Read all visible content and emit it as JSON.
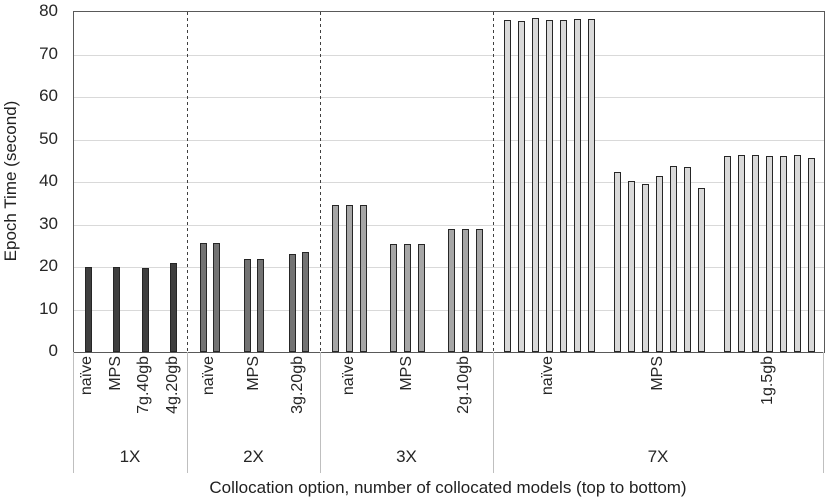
{
  "chart_data": {
    "type": "bar",
    "title": "",
    "ylabel": "Epoch Time (second)",
    "xlabel": "Collocation option, number of collocated models (top to bottom)",
    "ylim": [
      0,
      80
    ],
    "yticks": [
      0,
      10,
      20,
      30,
      40,
      50,
      60,
      70,
      80
    ],
    "grid": true,
    "legend": "none",
    "bar_outline_color": "#262626",
    "gridline_color": "#d9d9d9",
    "groups": [
      {
        "label": "1X",
        "fill": "#3f3f3f",
        "options": [
          {
            "label": "naïve",
            "values": [
              20.1
            ]
          },
          {
            "label": "MPS",
            "values": [
              20.0
            ]
          },
          {
            "label": "7g.40gb",
            "values": [
              19.7
            ]
          },
          {
            "label": "4g.20gb",
            "values": [
              20.9
            ]
          }
        ]
      },
      {
        "label": "2X",
        "fill": "#737373",
        "options": [
          {
            "label": "naïve",
            "values": [
              25.7,
              25.6
            ]
          },
          {
            "label": "MPS",
            "values": [
              21.9,
              21.9
            ]
          },
          {
            "label": "3g.20gb",
            "values": [
              23.1,
              23.6
            ]
          }
        ]
      },
      {
        "label": "3X",
        "fill": "#a6a6a6",
        "options": [
          {
            "label": "naïve",
            "values": [
              34.6,
              34.6,
              34.5
            ]
          },
          {
            "label": "MPS",
            "values": [
              25.4,
              25.4,
              25.3
            ]
          },
          {
            "label": "2g.10gb",
            "values": [
              29.0,
              29.0,
              29.0
            ]
          }
        ]
      },
      {
        "label": "7X",
        "fill": "#d9d9d9",
        "options": [
          {
            "label": "naïve",
            "values": [
              78.2,
              77.8,
              78.5,
              78.2,
              78.2,
              78.4,
              78.4
            ]
          },
          {
            "label": "MPS",
            "values": [
              42.4,
              40.2,
              39.5,
              41.5,
              43.8,
              43.5,
              38.7
            ]
          },
          {
            "label": "1g.5gb",
            "values": [
              46.2,
              46.3,
              46.3,
              46.2,
              46.2,
              46.3,
              45.7
            ]
          }
        ]
      }
    ]
  }
}
